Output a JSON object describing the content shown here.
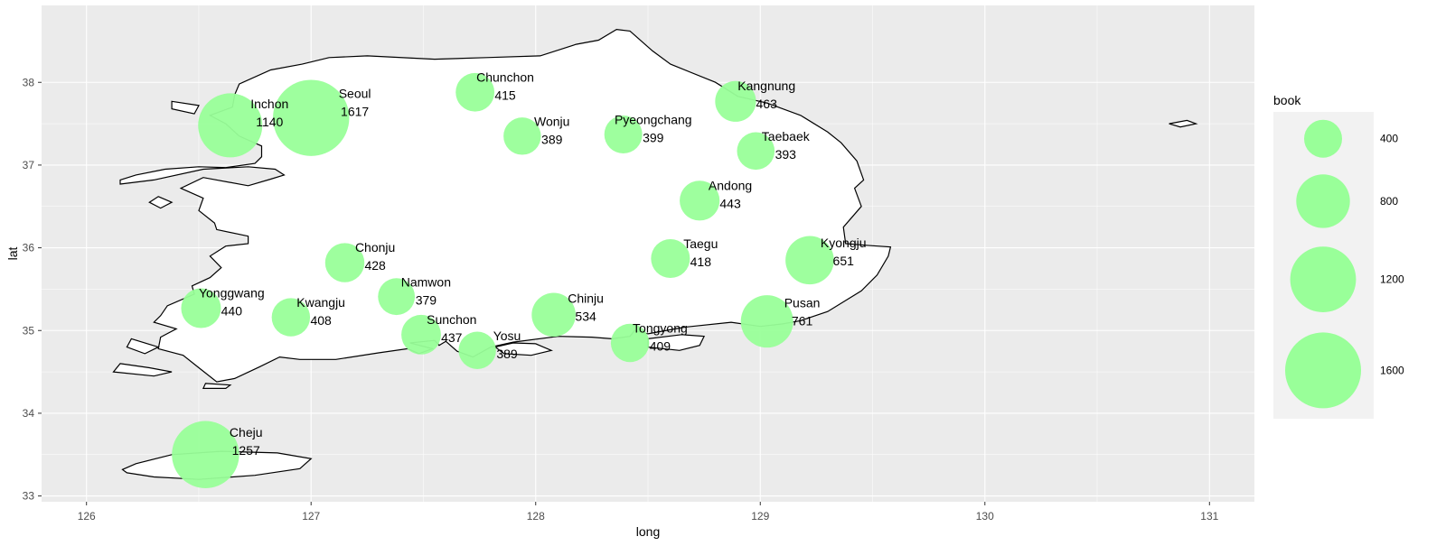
{
  "chart_data": {
    "type": "scatter",
    "title": "",
    "xlabel": "long",
    "ylabel": "lat",
    "xlim": [
      125.8,
      131.2
    ],
    "ylim": [
      32.93,
      38.93
    ],
    "xticks": [
      126,
      127,
      128,
      129,
      130,
      131
    ],
    "yticks": [
      33,
      34,
      35,
      36,
      37,
      38
    ],
    "grid": true,
    "size_variable": "book",
    "point_color": "#99ff99",
    "panel_color": "#ebebeb",
    "legend": {
      "title": "book",
      "placement": "right",
      "breaks": [
        400,
        800,
        1200,
        1600
      ],
      "labels": [
        "400",
        "800",
        "1200",
        "1600"
      ]
    },
    "points": [
      {
        "name": "Seoul",
        "long": 127.0,
        "lat": 37.57,
        "book": 1617
      },
      {
        "name": "Inchon",
        "long": 126.64,
        "lat": 37.48,
        "book": 1140
      },
      {
        "name": "Chunchon",
        "long": 127.73,
        "lat": 37.88,
        "book": 415
      },
      {
        "name": "Wonju",
        "long": 127.94,
        "lat": 37.35,
        "book": 389
      },
      {
        "name": "Pyeongchang",
        "long": 128.39,
        "lat": 37.37,
        "book": 399
      },
      {
        "name": "Kangnung",
        "long": 128.89,
        "lat": 37.77,
        "book": 463
      },
      {
        "name": "Taebaek",
        "long": 128.98,
        "lat": 37.17,
        "book": 393
      },
      {
        "name": "Andong",
        "long": 128.73,
        "lat": 36.57,
        "book": 443
      },
      {
        "name": "Chonju",
        "long": 127.15,
        "lat": 35.82,
        "book": 428
      },
      {
        "name": "Taegu",
        "long": 128.6,
        "lat": 35.87,
        "book": 418
      },
      {
        "name": "Kyongju",
        "long": 129.22,
        "lat": 35.85,
        "book": 651
      },
      {
        "name": "Yonggwang",
        "long": 126.51,
        "lat": 35.27,
        "book": 440
      },
      {
        "name": "Kwangju",
        "long": 126.91,
        "lat": 35.16,
        "book": 408
      },
      {
        "name": "Namwon",
        "long": 127.38,
        "lat": 35.41,
        "book": 379
      },
      {
        "name": "Chinju",
        "long": 128.08,
        "lat": 35.19,
        "book": 534
      },
      {
        "name": "Sunchon",
        "long": 127.49,
        "lat": 34.95,
        "book": 437
      },
      {
        "name": "Yosu",
        "long": 127.74,
        "lat": 34.76,
        "book": 389
      },
      {
        "name": "Tongyong",
        "long": 128.42,
        "lat": 34.85,
        "book": 409
      },
      {
        "name": "Pusan",
        "long": 129.03,
        "lat": 35.11,
        "book": 761
      },
      {
        "name": "Cheju",
        "long": 126.53,
        "lat": 33.5,
        "book": 1257
      }
    ]
  }
}
